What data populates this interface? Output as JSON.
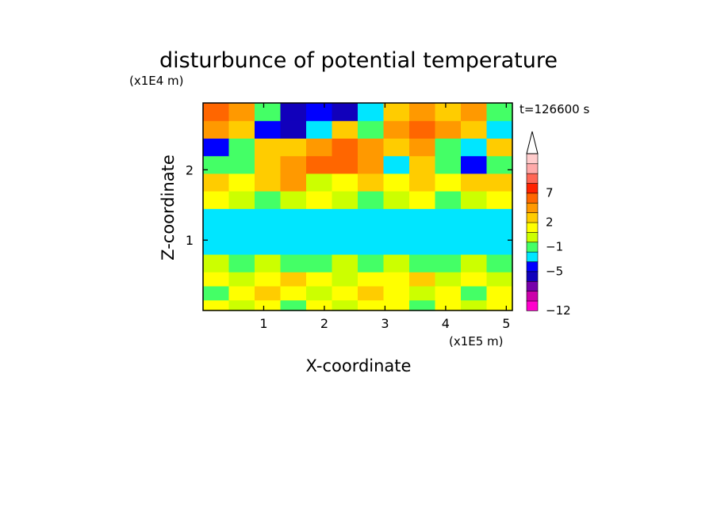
{
  "chart_data": {
    "type": "heatmap",
    "title": "disturbunce of potential temperature",
    "xlabel": "X-coordinate",
    "ylabel": "Z-coordinate",
    "x_unit": "(x1E5 m)",
    "y_unit": "(x1E4 m)",
    "time_label": "t=126600 s",
    "xlim": [
      0,
      5.1
    ],
    "ylim": [
      0,
      2.95
    ],
    "x_ticks": [
      "1",
      "2",
      "3",
      "4",
      "5"
    ],
    "y_ticks": [
      "1",
      "2"
    ],
    "x_tick_values": [
      1,
      2,
      3,
      4,
      5
    ],
    "y_tick_values": [
      1,
      2
    ],
    "colorbar": {
      "labels": [
        {
          "text": "7",
          "level": 7
        },
        {
          "text": "2",
          "level": 2
        },
        {
          "text": "−1",
          "level": -1
        },
        {
          "text": "−5",
          "level": -5
        },
        {
          "text": "−12",
          "level": -12
        }
      ],
      "colors": [
        "#ff00cc",
        "#cc00aa",
        "#7700aa",
        "#1100bb",
        "#0000ff",
        "#00e6ff",
        "#44ff66",
        "#ccff00",
        "#ffff00",
        "#ffcc00",
        "#ff9900",
        "#ff6600",
        "#ff2200",
        "#ff6655",
        "#ffaaaa",
        "#ffcccc"
      ],
      "extend_max": true
    },
    "field": {
      "rows": [
        {
          "z": [
            0.0,
            0.15
          ],
          "cells": [
            "#ffff00",
            "#ccff00",
            "#ffff00",
            "#44ff66",
            "#ffff00",
            "#ccff00",
            "#ffff00",
            "#ffff00",
            "#44ff66",
            "#ffff00",
            "#ccff00",
            "#ffff00"
          ]
        },
        {
          "z": [
            0.15,
            0.35
          ],
          "cells": [
            "#44ff66",
            "#ffff00",
            "#ffcc00",
            "#ffff00",
            "#ccff00",
            "#ffff00",
            "#ffcc00",
            "#ffff00",
            "#ccff00",
            "#ffff00",
            "#44ff66",
            "#ffff00"
          ]
        },
        {
          "z": [
            0.35,
            0.55
          ],
          "cells": [
            "#ffff00",
            "#ccff00",
            "#ffff00",
            "#ffcc00",
            "#ffff00",
            "#ccff00",
            "#ffff00",
            "#ffff00",
            "#ffcc00",
            "#ccff00",
            "#ffff00",
            "#ccff00"
          ]
        },
        {
          "z": [
            0.55,
            0.8
          ],
          "cells": [
            "#ccff00",
            "#44ff66",
            "#ccff00",
            "#44ff66",
            "#44ff66",
            "#ccff00",
            "#44ff66",
            "#ccff00",
            "#44ff66",
            "#44ff66",
            "#ccff00",
            "#44ff66"
          ]
        },
        {
          "z": [
            0.8,
            1.45
          ],
          "cells": [
            "#00e6ff",
            "#00e6ff",
            "#00e6ff",
            "#00e6ff",
            "#00e6ff",
            "#00e6ff",
            "#00e6ff",
            "#00e6ff",
            "#00e6ff",
            "#00e6ff",
            "#00e6ff",
            "#00e6ff"
          ]
        },
        {
          "z": [
            1.45,
            1.7
          ],
          "cells": [
            "#ffff00",
            "#ccff00",
            "#44ff66",
            "#ccff00",
            "#ffff00",
            "#ccff00",
            "#44ff66",
            "#ccff00",
            "#ffff00",
            "#44ff66",
            "#ccff00",
            "#ffff00"
          ]
        },
        {
          "z": [
            1.7,
            1.95
          ],
          "cells": [
            "#ffcc00",
            "#ffff00",
            "#ffcc00",
            "#ff9900",
            "#ccff00",
            "#ffff00",
            "#ffcc00",
            "#ffff00",
            "#ffcc00",
            "#ffff00",
            "#ffcc00",
            "#ffcc00"
          ]
        },
        {
          "z": [
            1.95,
            2.2
          ],
          "cells": [
            "#44ff66",
            "#44ff66",
            "#ffcc00",
            "#ff9900",
            "#ff6600",
            "#ff6600",
            "#ff9900",
            "#00e6ff",
            "#ffcc00",
            "#44ff66",
            "#0000ff",
            "#44ff66"
          ]
        },
        {
          "z": [
            2.2,
            2.45
          ],
          "cells": [
            "#0000ff",
            "#44ff66",
            "#ffcc00",
            "#ffcc00",
            "#ff9900",
            "#ff6600",
            "#ff9900",
            "#ffcc00",
            "#ff9900",
            "#44ff66",
            "#00e6ff",
            "#ffcc00"
          ]
        },
        {
          "z": [
            2.45,
            2.7
          ],
          "cells": [
            "#ff9900",
            "#ffcc00",
            "#0000ff",
            "#1100bb",
            "#00e6ff",
            "#ffcc00",
            "#44ff66",
            "#ff9900",
            "#ff6600",
            "#ff9900",
            "#ffcc00",
            "#00e6ff"
          ]
        },
        {
          "z": [
            2.7,
            2.95
          ],
          "cells": [
            "#ff6600",
            "#ff9900",
            "#44ff66",
            "#1100bb",
            "#0000ff",
            "#1100bb",
            "#00e6ff",
            "#ffcc00",
            "#ff9900",
            "#ffcc00",
            "#ff9900",
            "#44ff66"
          ]
        }
      ]
    }
  }
}
